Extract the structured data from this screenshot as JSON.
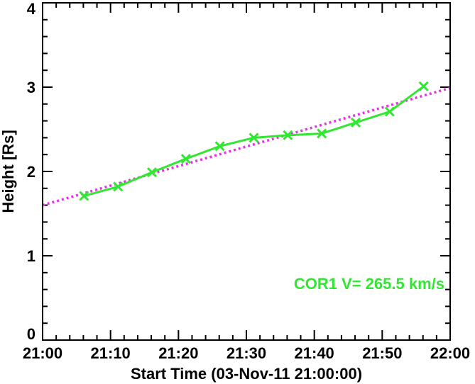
{
  "chart_data": {
    "type": "line",
    "xlabel": "Start Time (03-Nov-11 21:00:00)",
    "ylabel": "Height [Rs]",
    "xlim": [
      0,
      60
    ],
    "ylim": [
      0,
      4
    ],
    "x_tick_values": [
      0,
      10,
      20,
      30,
      40,
      50,
      60
    ],
    "x_tick_labels": [
      "21:00",
      "21:10",
      "21:20",
      "21:30",
      "21:40",
      "21:50",
      "22:00"
    ],
    "y_tick_values": [
      0,
      1,
      2,
      3,
      4
    ],
    "y_tick_labels": [
      "0",
      "1",
      "2",
      "3",
      "4"
    ],
    "grid": false,
    "series": [
      {
        "style": "solid line with x markers",
        "color": "#33e633",
        "x": [
          6.1,
          11.1,
          16.1,
          21.1,
          26.1,
          31.1,
          36.1,
          41.1,
          46.1,
          51.1,
          56.1
        ],
        "y": [
          1.71,
          1.82,
          1.99,
          2.15,
          2.3,
          2.4,
          2.43,
          2.45,
          2.58,
          2.71,
          3.01
        ]
      },
      {
        "style": "dotted line",
        "color": "#e633e6",
        "x": [
          0,
          60
        ],
        "y": [
          1.6,
          2.99
        ]
      }
    ],
    "annotation": {
      "text": "COR1 V=  265.5 km/s",
      "color": "#33e633"
    }
  }
}
